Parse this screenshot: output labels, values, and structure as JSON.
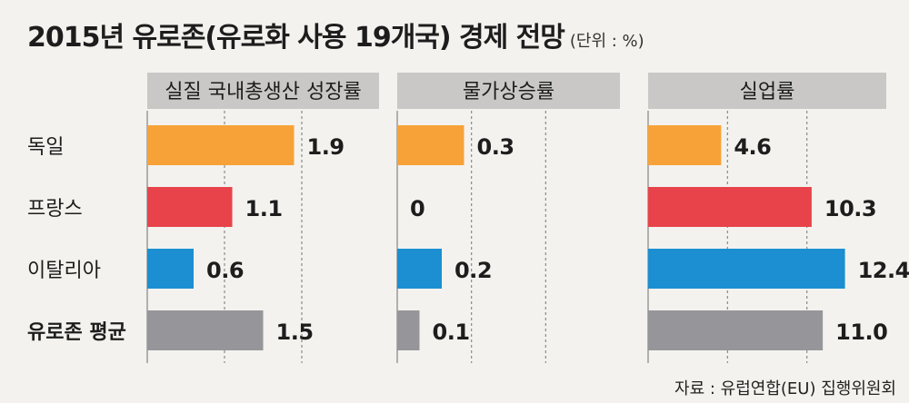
{
  "title": "2015년 유로존(유로화 사용 19개국) 경제 전망",
  "unit": "(단위 : %)",
  "source": "자료 : 유럽연합(EU) 집행위원회",
  "chart_data": {
    "type": "bar",
    "orientation": "horizontal",
    "categories": [
      "독일",
      "프랑스",
      "이탈리아",
      "유로존 평균"
    ],
    "category_bold": [
      false,
      false,
      false,
      true
    ],
    "colors": [
      "#f7a238",
      "#e8434a",
      "#1b8fd2",
      "#96969a"
    ],
    "panels": [
      {
        "title": "실질 국내총생산 성장률",
        "values": [
          1.9,
          1.1,
          0.6,
          1.5
        ],
        "labels": [
          "1.9",
          "1.1",
          "0.6",
          "1.5"
        ],
        "xlim": [
          0,
          3.0
        ]
      },
      {
        "title": "물가상승률",
        "values": [
          0.3,
          0,
          0.2,
          0.1
        ],
        "labels": [
          "0.3",
          "0",
          "0.2",
          "0.1"
        ],
        "xlim": [
          0,
          1.0
        ]
      },
      {
        "title": "실업률",
        "values": [
          4.6,
          10.3,
          12.4,
          11.0
        ],
        "labels": [
          "4.6",
          "10.3",
          "12.4",
          "11.0"
        ],
        "xlim": [
          0,
          15.0
        ]
      }
    ]
  }
}
